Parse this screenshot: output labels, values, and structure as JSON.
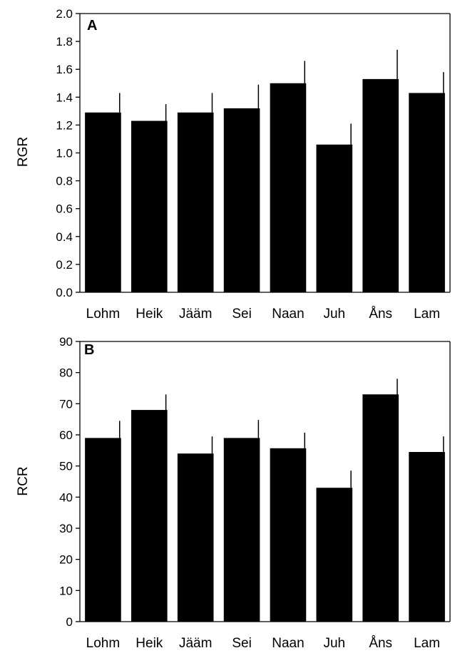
{
  "chart_data": [
    {
      "type": "bar",
      "panel_label": "A",
      "title": "",
      "xlabel": "",
      "ylabel": "RGR",
      "ylim": [
        0,
        2.0
      ],
      "yticks": [
        "0.0",
        "0.2",
        "0.4",
        "0.6",
        "0.8",
        "1.0",
        "1.2",
        "1.4",
        "1.6",
        "1.8",
        "2.0"
      ],
      "categories": [
        "Lohm",
        "Heik",
        "Jääm",
        "Sei",
        "Naan",
        "Juh",
        "Åns",
        "Lam"
      ],
      "values": [
        1.29,
        1.23,
        1.29,
        1.32,
        1.5,
        1.06,
        1.53,
        1.43
      ],
      "errors": [
        0.14,
        0.12,
        0.14,
        0.17,
        0.16,
        0.15,
        0.21,
        0.15
      ],
      "grid": false
    },
    {
      "type": "bar",
      "panel_label": "B",
      "title": "",
      "xlabel": "",
      "ylabel": "RCR",
      "ylim": [
        0,
        90
      ],
      "yticks": [
        "0",
        "10",
        "20",
        "30",
        "40",
        "50",
        "60",
        "70",
        "80",
        "90"
      ],
      "categories": [
        "Lohm",
        "Heik",
        "Jääm",
        "Sei",
        "Naan",
        "Juh",
        "Åns",
        "Lam"
      ],
      "values": [
        59,
        68,
        54,
        59,
        55.7,
        43,
        73,
        54.5
      ],
      "errors": [
        5.5,
        5.0,
        5.5,
        5.8,
        5.0,
        5.5,
        5.0,
        5.0
      ],
      "grid": false
    }
  ]
}
